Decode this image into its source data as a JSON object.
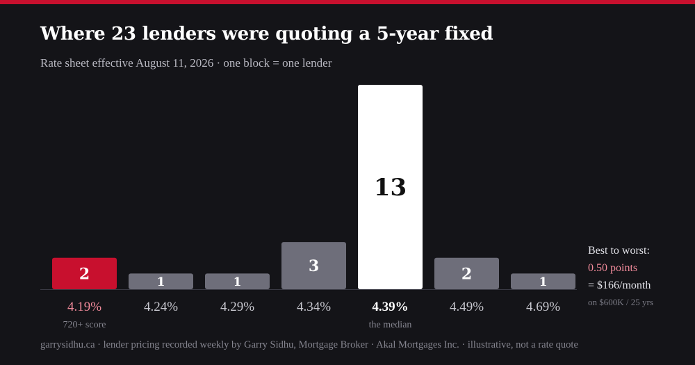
{
  "header": {
    "title": "Where 23 lenders were quoting a 5-year fixed",
    "subtitle": "Rate sheet effective August 11, 2026 · one block = one lender"
  },
  "chart_data": {
    "type": "bar",
    "title": "Where 23 lenders were quoting a 5-year fixed",
    "categories": [
      "4.19%",
      "4.24%",
      "4.29%",
      "4.34%",
      "4.39%",
      "4.49%",
      "4.69%"
    ],
    "values": [
      2,
      1,
      1,
      3,
      13,
      2,
      1
    ],
    "category_notes": [
      "720+ score",
      "",
      "",
      "",
      "the median",
      "",
      ""
    ],
    "highlight": {
      "best_index": 0,
      "median_index": 4
    },
    "colors": {
      "best": "#c8102e",
      "median": "#ffffff",
      "other": "#6e6e7a"
    },
    "ylim": [
      0,
      13
    ],
    "grid": false,
    "legend": "none"
  },
  "sidebar": {
    "title": "Best to worst:",
    "points": "0.50 points",
    "monthly": "= $166/month",
    "note": "on $600K / 25 yrs"
  },
  "footer": {
    "text": "garrysidhu.ca · lender pricing recorded weekly by Garry Sidhu, Mortgage Broker · Akal Mortgages Inc. · illustrative, not a rate quote"
  }
}
